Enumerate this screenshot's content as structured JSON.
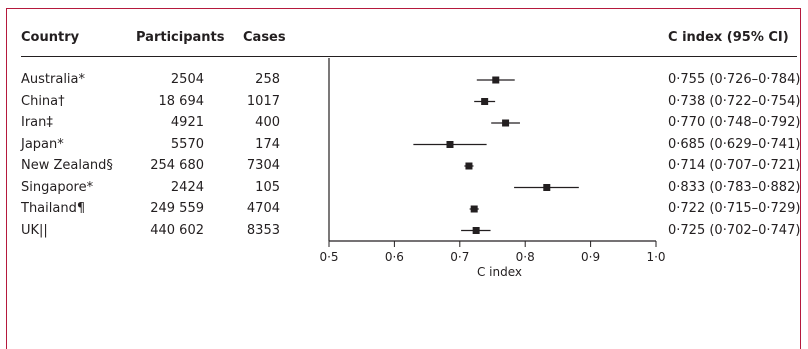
{
  "table": {
    "headers": {
      "country": "Country",
      "participants": "Participants",
      "cases": "Cases",
      "cindex": "C index (95% CI)"
    },
    "rows": [
      {
        "country": "Australia*",
        "participants": "2504",
        "cases": "258",
        "cindex": "0·755 (0·726–0·784)"
      },
      {
        "country": "China†",
        "participants": "18 694",
        "cases": "1017",
        "cindex": "0·738 (0·722–0·754)"
      },
      {
        "country": "Iran‡",
        "participants": "4921",
        "cases": "400",
        "cindex": "0·770 (0·748–0·792)"
      },
      {
        "country": "Japan*",
        "participants": "5570",
        "cases": "174",
        "cindex": "0·685 (0·629–0·741)"
      },
      {
        "country": "New Zealand§",
        "participants": "254 680",
        "cases": "7304",
        "cindex": "0·714 (0·707–0·721)"
      },
      {
        "country": "Singapore*",
        "participants": "2424",
        "cases": "105",
        "cindex": "0·833 (0·783–0·882)"
      },
      {
        "country": "Thailand¶",
        "participants": "249 559",
        "cases": "4704",
        "cindex": "0·722 (0·715–0·729)"
      },
      {
        "country": "UK||",
        "participants": "440 602",
        "cases": "8353",
        "cindex": "0·725 (0·702–0·747)"
      }
    ]
  },
  "chart_data": {
    "type": "forest",
    "xlabel": "C index",
    "xlim": [
      0.5,
      1.0
    ],
    "xticks": [
      0.5,
      0.6,
      0.7,
      0.8,
      0.9,
      1.0
    ],
    "xtick_labels": [
      "0·5",
      "0·6",
      "0·7",
      "0·8",
      "0·9",
      "1·0"
    ],
    "reference_line": 0.5,
    "categories": [
      "Australia*",
      "China†",
      "Iran‡",
      "Japan*",
      "New Zealand§",
      "Singapore*",
      "Thailand¶",
      "UK||"
    ],
    "estimates": [
      0.755,
      0.738,
      0.77,
      0.685,
      0.714,
      0.833,
      0.722,
      0.725
    ],
    "ci_lower": [
      0.726,
      0.722,
      0.748,
      0.629,
      0.707,
      0.783,
      0.715,
      0.702
    ],
    "ci_upper": [
      0.784,
      0.754,
      0.792,
      0.741,
      0.721,
      0.882,
      0.729,
      0.747
    ]
  },
  "colors": {
    "frame": "#b5193d",
    "ink": "#231f20"
  }
}
